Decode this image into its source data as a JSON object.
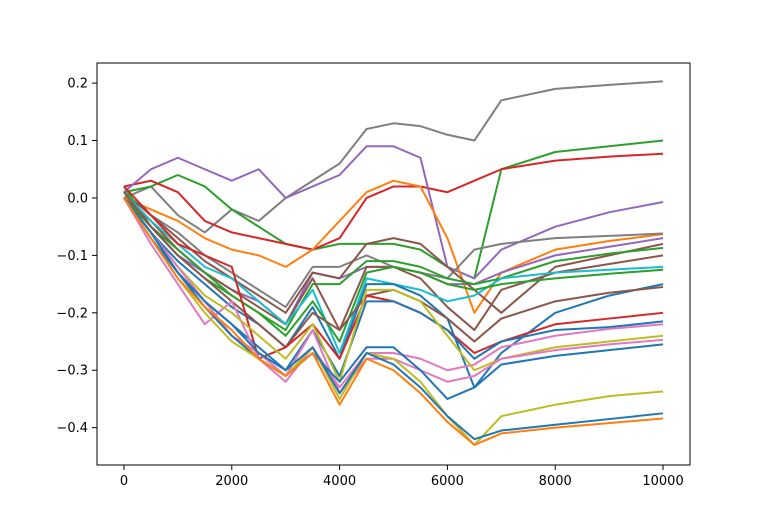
{
  "chart_data": {
    "type": "line",
    "title": "",
    "xlabel": "",
    "ylabel": "",
    "xlim": [
      -500,
      10500
    ],
    "ylim": [
      -0.465,
      0.235
    ],
    "grid": false,
    "legend": "none",
    "x_ticks": [
      0,
      2000,
      4000,
      6000,
      8000,
      10000
    ],
    "x_tick_labels": [
      "0",
      "2000",
      "4000",
      "6000",
      "8000",
      "10000"
    ],
    "y_ticks": [
      0.2,
      0.1,
      0.0,
      -0.1,
      -0.2,
      -0.3,
      -0.4
    ],
    "y_tick_labels": [
      "0.2",
      "0.1",
      "0.0",
      "−0.1",
      "−0.2",
      "−0.3",
      "−0.4"
    ],
    "x": [
      0,
      500,
      1000,
      1500,
      2000,
      2500,
      3000,
      3500,
      4000,
      4500,
      5000,
      5500,
      6000,
      6500,
      7000,
      8000,
      9000,
      10000
    ],
    "series": [
      {
        "color": "#7f7f7f",
        "values": [
          0.0,
          0.02,
          -0.03,
          -0.06,
          -0.02,
          -0.04,
          0.0,
          0.03,
          0.06,
          0.12,
          0.13,
          0.125,
          0.11,
          0.1,
          0.17,
          0.19,
          0.197,
          0.203
        ]
      },
      {
        "color": "#2ca02c",
        "values": [
          0.01,
          0.02,
          0.04,
          0.02,
          -0.02,
          -0.05,
          -0.08,
          -0.09,
          -0.08,
          -0.08,
          -0.08,
          -0.09,
          -0.12,
          -0.14,
          0.05,
          0.08,
          0.09,
          0.1
        ]
      },
      {
        "color": "#d62728",
        "values": [
          0.02,
          0.03,
          0.01,
          -0.04,
          -0.06,
          -0.07,
          -0.08,
          -0.09,
          -0.07,
          0.0,
          0.02,
          0.02,
          0.01,
          0.03,
          0.05,
          0.065,
          0.072,
          0.077
        ]
      },
      {
        "color": "#9467bd",
        "values": [
          0.01,
          0.05,
          0.07,
          0.05,
          0.03,
          0.05,
          0.0,
          0.02,
          0.04,
          0.09,
          0.09,
          0.07,
          -0.12,
          -0.14,
          -0.09,
          -0.05,
          -0.025,
          -0.007
        ]
      },
      {
        "color": "#ff7f0e",
        "values": [
          0.0,
          -0.02,
          -0.04,
          -0.07,
          -0.09,
          -0.1,
          -0.12,
          -0.09,
          -0.04,
          0.01,
          0.03,
          0.02,
          -0.07,
          -0.2,
          -0.13,
          -0.09,
          -0.075,
          -0.063
        ]
      },
      {
        "color": "#7f7f7f",
        "values": [
          0.01,
          -0.03,
          -0.06,
          -0.1,
          -0.13,
          -0.16,
          -0.19,
          -0.12,
          -0.12,
          -0.1,
          -0.12,
          -0.13,
          -0.14,
          -0.09,
          -0.08,
          -0.07,
          -0.066,
          -0.062
        ]
      },
      {
        "color": "#9467bd",
        "values": [
          0.0,
          -0.05,
          -0.1,
          -0.13,
          -0.16,
          -0.18,
          -0.22,
          -0.13,
          -0.14,
          -0.12,
          -0.12,
          -0.13,
          -0.15,
          -0.15,
          -0.13,
          -0.1,
          -0.085,
          -0.07
        ]
      },
      {
        "color": "#8c564b",
        "values": [
          0.01,
          -0.03,
          -0.07,
          -0.11,
          -0.14,
          -0.17,
          -0.2,
          -0.13,
          -0.14,
          -0.08,
          -0.07,
          -0.08,
          -0.12,
          -0.16,
          -0.2,
          -0.12,
          -0.1,
          -0.08
        ]
      },
      {
        "color": "#2ca02c",
        "values": [
          0.02,
          -0.05,
          -0.1,
          -0.14,
          -0.17,
          -0.2,
          -0.23,
          -0.15,
          -0.15,
          -0.11,
          -0.11,
          -0.12,
          -0.14,
          -0.15,
          -0.14,
          -0.11,
          -0.097,
          -0.087
        ]
      },
      {
        "color": "#8c564b",
        "values": [
          0.0,
          -0.04,
          -0.09,
          -0.13,
          -0.16,
          -0.19,
          -0.22,
          -0.14,
          -0.23,
          -0.12,
          -0.12,
          -0.14,
          -0.19,
          -0.23,
          -0.16,
          -0.13,
          -0.115,
          -0.1
        ]
      },
      {
        "color": "#17becf",
        "values": [
          0.01,
          -0.04,
          -0.08,
          -0.12,
          -0.14,
          -0.18,
          -0.22,
          -0.16,
          -0.27,
          -0.14,
          -0.15,
          -0.16,
          -0.18,
          -0.17,
          -0.14,
          -0.13,
          -0.125,
          -0.12
        ]
      },
      {
        "color": "#2ca02c",
        "values": [
          0.0,
          -0.05,
          -0.09,
          -0.13,
          -0.17,
          -0.2,
          -0.24,
          -0.18,
          -0.25,
          -0.13,
          -0.12,
          -0.13,
          -0.15,
          -0.16,
          -0.15,
          -0.14,
          -0.132,
          -0.125
        ]
      },
      {
        "color": "#1f77b4",
        "values": [
          0.0,
          -0.06,
          -0.11,
          -0.15,
          -0.19,
          -0.22,
          -0.26,
          -0.19,
          -0.28,
          -0.15,
          -0.15,
          -0.17,
          -0.21,
          -0.33,
          -0.27,
          -0.2,
          -0.17,
          -0.15
        ]
      },
      {
        "color": "#8c564b",
        "values": [
          0.01,
          -0.05,
          -0.1,
          -0.14,
          -0.18,
          -0.22,
          -0.26,
          -0.2,
          -0.23,
          -0.17,
          -0.16,
          -0.18,
          -0.21,
          -0.25,
          -0.21,
          -0.18,
          -0.165,
          -0.155
        ]
      },
      {
        "color": "#d62728",
        "values": [
          0.02,
          -0.03,
          -0.08,
          -0.1,
          -0.12,
          -0.28,
          -0.26,
          -0.22,
          -0.28,
          -0.17,
          -0.18,
          -0.2,
          -0.23,
          -0.27,
          -0.25,
          -0.22,
          -0.21,
          -0.2
        ]
      },
      {
        "color": "#1f77b4",
        "values": [
          0.0,
          -0.07,
          -0.13,
          -0.18,
          -0.22,
          -0.26,
          -0.3,
          -0.23,
          -0.31,
          -0.18,
          -0.18,
          -0.2,
          -0.23,
          -0.28,
          -0.25,
          -0.23,
          -0.225,
          -0.215
        ]
      },
      {
        "color": "#e377c2",
        "values": [
          0.0,
          -0.08,
          -0.15,
          -0.22,
          -0.18,
          -0.28,
          -0.32,
          -0.26,
          -0.33,
          -0.27,
          -0.27,
          -0.28,
          -0.3,
          -0.29,
          -0.26,
          -0.24,
          -0.228,
          -0.22
        ]
      },
      {
        "color": "#bcbd22",
        "values": [
          0.0,
          -0.06,
          -0.12,
          -0.17,
          -0.2,
          -0.24,
          -0.28,
          -0.22,
          -0.32,
          -0.16,
          -0.16,
          -0.18,
          -0.24,
          -0.3,
          -0.28,
          -0.26,
          -0.25,
          -0.24
        ]
      },
      {
        "color": "#e377c2",
        "values": [
          0.0,
          -0.06,
          -0.12,
          -0.18,
          -0.24,
          -0.27,
          -0.31,
          -0.23,
          -0.34,
          -0.28,
          -0.28,
          -0.3,
          -0.32,
          -0.31,
          -0.28,
          -0.265,
          -0.255,
          -0.247
        ]
      },
      {
        "color": "#1f77b4",
        "values": [
          0.0,
          -0.06,
          -0.13,
          -0.19,
          -0.24,
          -0.28,
          -0.31,
          -0.27,
          -0.32,
          -0.26,
          -0.26,
          -0.3,
          -0.35,
          -0.33,
          -0.29,
          -0.275,
          -0.265,
          -0.255
        ]
      },
      {
        "color": "#bcbd22",
        "values": [
          0.0,
          -0.07,
          -0.14,
          -0.2,
          -0.25,
          -0.28,
          -0.31,
          -0.26,
          -0.35,
          -0.27,
          -0.28,
          -0.32,
          -0.38,
          -0.43,
          -0.38,
          -0.36,
          -0.345,
          -0.337
        ]
      },
      {
        "color": "#1f77b4",
        "values": [
          0.0,
          -0.06,
          -0.13,
          -0.18,
          -0.22,
          -0.27,
          -0.3,
          -0.26,
          -0.34,
          -0.27,
          -0.29,
          -0.33,
          -0.38,
          -0.42,
          -0.405,
          -0.395,
          -0.385,
          -0.375
        ]
      },
      {
        "color": "#ff7f0e",
        "values": [
          0.0,
          -0.07,
          -0.14,
          -0.19,
          -0.23,
          -0.28,
          -0.31,
          -0.27,
          -0.36,
          -0.28,
          -0.3,
          -0.34,
          -0.39,
          -0.43,
          -0.41,
          -0.4,
          -0.392,
          -0.384
        ]
      }
    ]
  }
}
